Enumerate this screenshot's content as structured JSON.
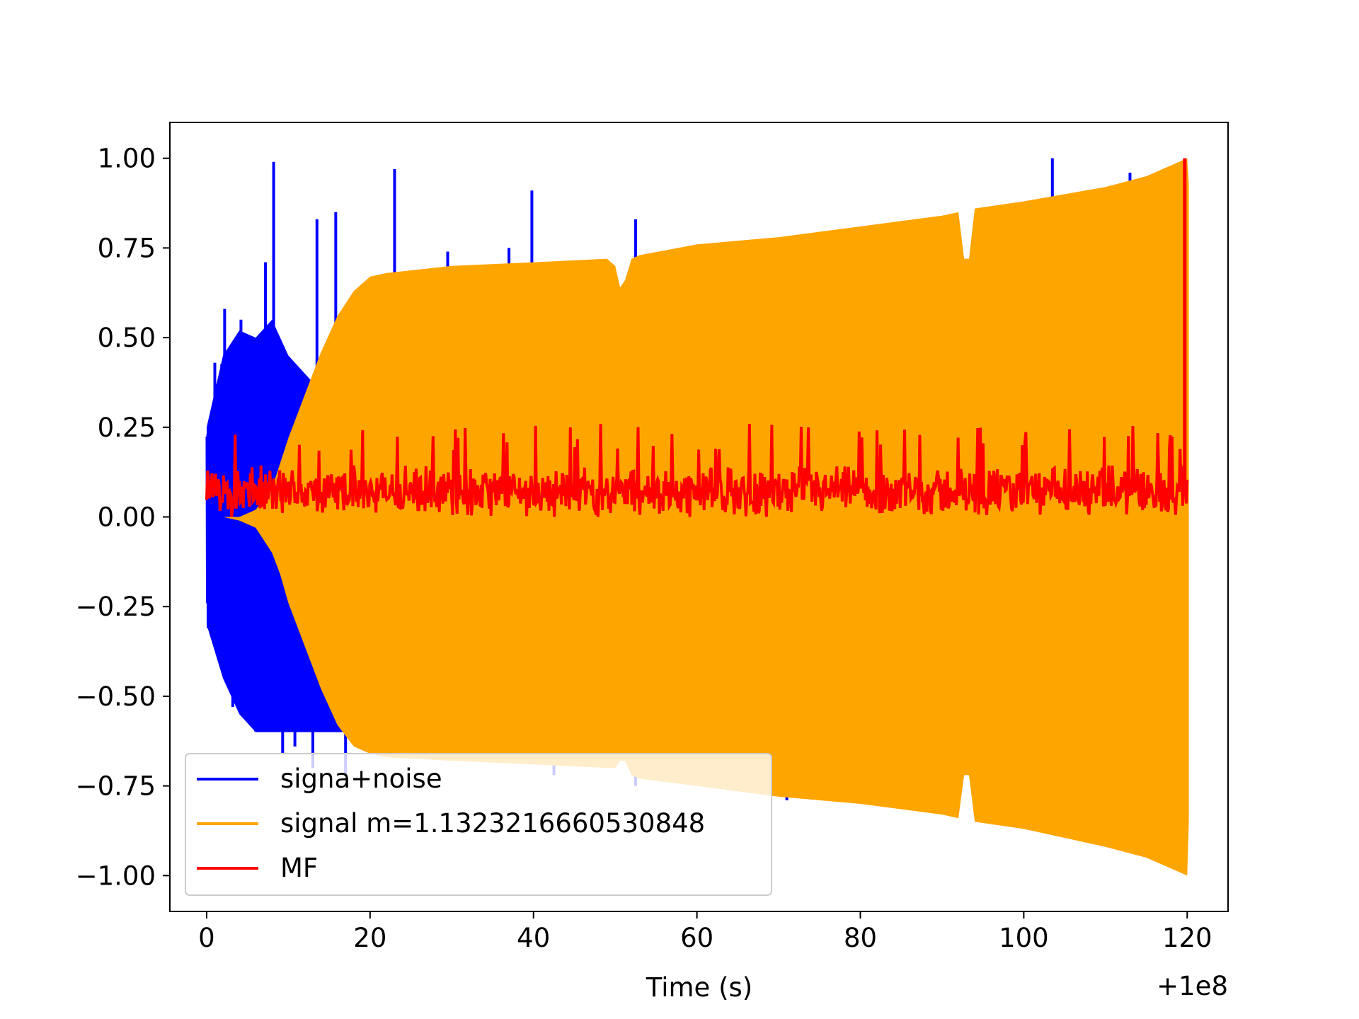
{
  "chart_data": {
    "type": "line",
    "title": "",
    "xlabel": "Time (s)",
    "ylabel": "",
    "x_offset_label": "+1e8",
    "xlim": [
      -4.5,
      125
    ],
    "ylim": [
      -1.1,
      1.1
    ],
    "xticks": [
      0,
      20,
      40,
      60,
      80,
      100,
      120
    ],
    "xtick_labels": [
      "0",
      "20",
      "40",
      "60",
      "80",
      "100",
      "120"
    ],
    "yticks": [
      1.0,
      0.75,
      0.5,
      0.25,
      0.0,
      -0.25,
      -0.5,
      -0.75,
      -1.0
    ],
    "ytick_labels": [
      "1.00",
      "0.75",
      "0.50",
      "0.25",
      "0.00",
      "−0.25",
      "−0.50",
      "−0.75",
      "−1.00"
    ],
    "grid": false,
    "legend_position": "lower-left",
    "colors": {
      "signal_noise": "#0000ff",
      "signal": "#ffa500",
      "mf": "#ff0000"
    },
    "series": [
      {
        "name": "signa+noise",
        "style": "envelope",
        "x": [
          0,
          2,
          4,
          6,
          8,
          10,
          12,
          14,
          16,
          18,
          20
        ],
        "upper": [
          0.25,
          0.45,
          0.52,
          0.5,
          0.55,
          0.45,
          0.4,
          0.35,
          0.35,
          0.3,
          0.3
        ],
        "lower": [
          -0.3,
          -0.45,
          -0.55,
          -0.6,
          -0.6,
          -0.6,
          -0.6,
          -0.6,
          -0.6,
          -0.6,
          -0.6
        ],
        "spikes": [
          {
            "x": 0.3,
            "y": -0.27
          },
          {
            "x": 1.0,
            "y": 0.43
          },
          {
            "x": 2.2,
            "y": 0.58
          },
          {
            "x": 3.2,
            "y": -0.53
          },
          {
            "x": 4.2,
            "y": 0.55
          },
          {
            "x": 5.8,
            "y": -0.58
          },
          {
            "x": 7.2,
            "y": 0.71
          },
          {
            "x": 8.2,
            "y": 0.99
          },
          {
            "x": 9.3,
            "y": -0.66
          },
          {
            "x": 10.8,
            "y": -0.64
          },
          {
            "x": 13.5,
            "y": 0.83
          },
          {
            "x": 15.8,
            "y": 0.85
          },
          {
            "x": 13.0,
            "y": -0.7
          },
          {
            "x": 17.0,
            "y": -0.72
          },
          {
            "x": 23.0,
            "y": 0.97
          },
          {
            "x": 29.5,
            "y": 0.74
          },
          {
            "x": 33.0,
            "y": 0.67
          },
          {
            "x": 37.0,
            "y": 0.75
          },
          {
            "x": 39.8,
            "y": 0.91
          },
          {
            "x": 42.5,
            "y": -0.72
          },
          {
            "x": 52.5,
            "y": 0.83
          },
          {
            "x": 52.5,
            "y": -0.75
          },
          {
            "x": 71.0,
            "y": -0.79
          },
          {
            "x": 103.5,
            "y": 1.0
          },
          {
            "x": 113.0,
            "y": 0.96
          }
        ]
      },
      {
        "name": "signal m=1.1323216660530848",
        "style": "envelope",
        "x": [
          0,
          2,
          4,
          6,
          8,
          9,
          10,
          12,
          14,
          16,
          18,
          20,
          22,
          30,
          40,
          49,
          50,
          50.6,
          51.2,
          52,
          53,
          60,
          70,
          80,
          90,
          92,
          92.7,
          93.3,
          94,
          100,
          110,
          115,
          120,
          120.2
        ],
        "upper": [
          0.0,
          0.0,
          0.0,
          0.02,
          0.08,
          0.15,
          0.22,
          0.34,
          0.46,
          0.56,
          0.63,
          0.67,
          0.68,
          0.7,
          0.71,
          0.72,
          0.7,
          0.64,
          0.66,
          0.72,
          0.73,
          0.76,
          0.78,
          0.81,
          0.84,
          0.85,
          0.72,
          0.72,
          0.86,
          0.88,
          0.92,
          0.95,
          1.0,
          0.93
        ],
        "lower": [
          0.0,
          0.0,
          -0.01,
          -0.03,
          -0.1,
          -0.16,
          -0.24,
          -0.36,
          -0.48,
          -0.58,
          -0.64,
          -0.66,
          -0.67,
          -0.68,
          -0.69,
          -0.7,
          -0.7,
          -0.68,
          -0.68,
          -0.72,
          -0.73,
          -0.75,
          -0.78,
          -0.8,
          -0.83,
          -0.84,
          -0.72,
          -0.72,
          -0.85,
          -0.87,
          -0.92,
          -0.95,
          -1.0,
          -0.85
        ]
      },
      {
        "name": "MF",
        "style": "noise-band",
        "x_start": 0,
        "x_end": 120,
        "baseline": 0.07,
        "amplitude": 0.08,
        "max_spike": 0.26,
        "final_peak": {
          "x": 119.7,
          "y": 1.0
        }
      }
    ]
  }
}
